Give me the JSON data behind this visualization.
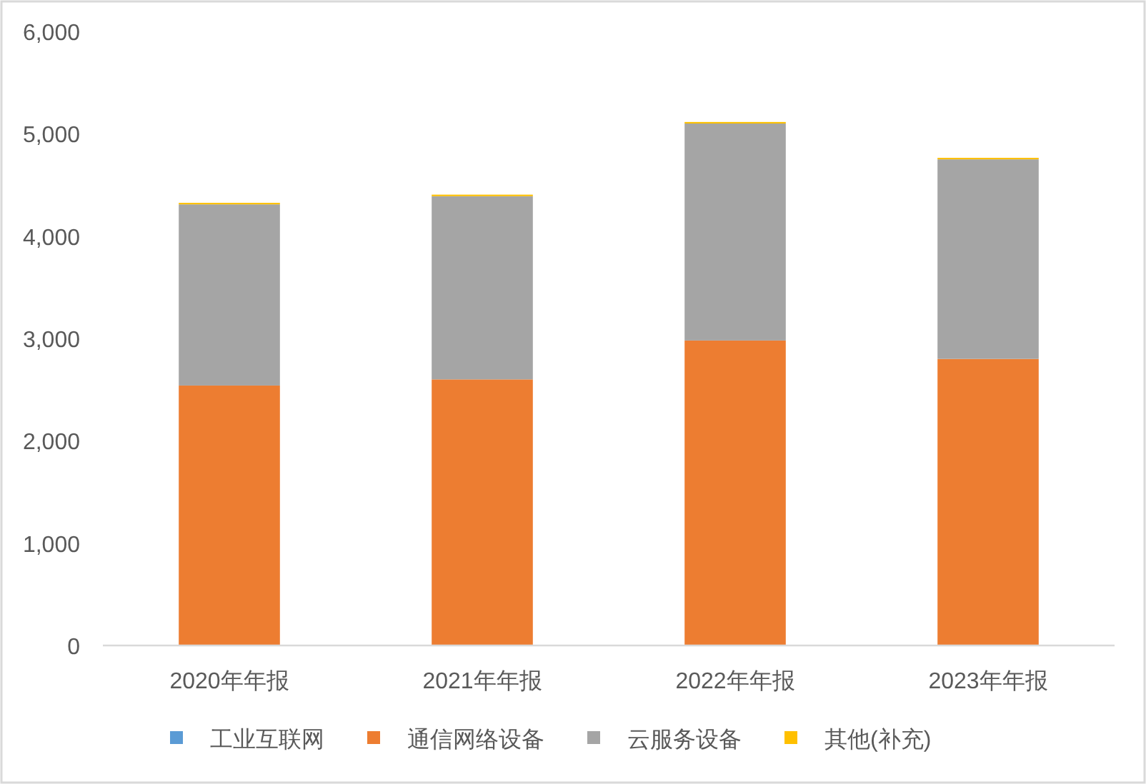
{
  "chart_data": {
    "type": "bar",
    "stacked": true,
    "categories": [
      "2020年年报",
      "2021年年报",
      "2022年年报",
      "2023年年报"
    ],
    "series": [
      {
        "name": "工业互联网",
        "color": "#5b9bd5",
        "values": [
          0,
          0,
          0,
          0
        ]
      },
      {
        "name": "通信网络设备",
        "color": "#ed7d31",
        "values": [
          2540,
          2600,
          2980,
          2800
        ]
      },
      {
        "name": "云服务设备",
        "color": "#a5a5a5",
        "values": [
          1770,
          1790,
          2120,
          1950
        ]
      },
      {
        "name": "其他(补充)",
        "color": "#ffc000",
        "values": [
          15,
          15,
          15,
          15
        ]
      }
    ],
    "ylim": [
      0,
      6000
    ],
    "yticks": [
      {
        "value": 0,
        "label": "0"
      },
      {
        "value": 1000,
        "label": "1,000"
      },
      {
        "value": 2000,
        "label": "2,000"
      },
      {
        "value": 3000,
        "label": "3,000"
      },
      {
        "value": 4000,
        "label": "4,000"
      },
      {
        "value": 5000,
        "label": "5,000"
      },
      {
        "value": 6000,
        "label": "6,000"
      }
    ],
    "grid": false,
    "legend": "bottom"
  }
}
